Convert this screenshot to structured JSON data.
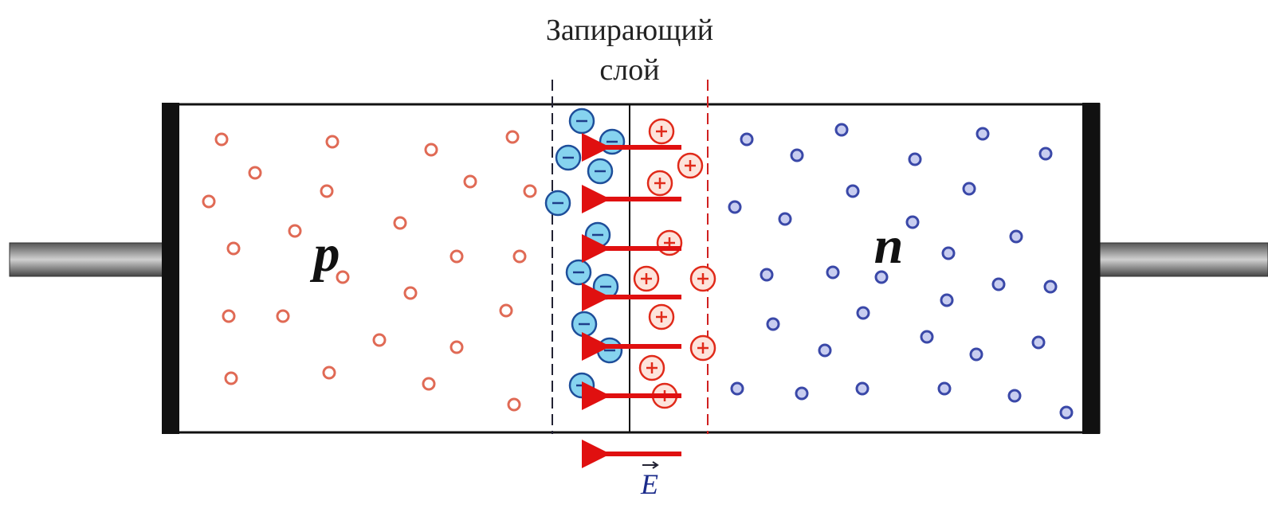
{
  "barrier_label": {
    "line1": "Запирающий",
    "line2": "слой"
  },
  "regions": {
    "p": "p",
    "n": "n"
  },
  "field": {
    "label": "E"
  }
}
